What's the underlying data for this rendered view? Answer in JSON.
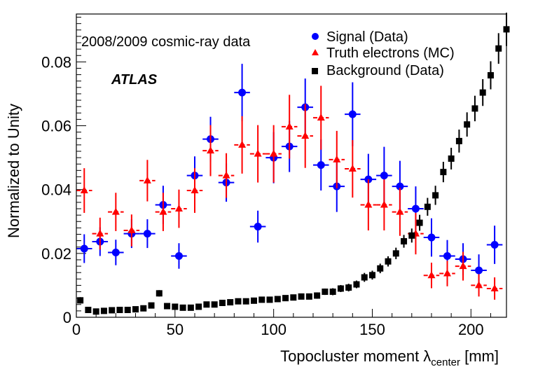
{
  "chart_data": {
    "type": "scatter",
    "xlabel_main": "Topocluster moment ",
    "xlabel_symbol": "λ",
    "xlabel_sub": "center",
    "xlabel_unit": " [mm]",
    "ylabel": "Normalized to Unity",
    "xlim": [
      0,
      218
    ],
    "ylim": [
      0,
      0.095
    ],
    "x_major_ticks": [
      0,
      50,
      100,
      150,
      200
    ],
    "x_tick_labels": [
      "0",
      "50",
      "100",
      "150",
      "200"
    ],
    "y_major_ticks": [
      0,
      0.02,
      0.04,
      0.06,
      0.08
    ],
    "y_tick_labels": [
      "0",
      "0.02",
      "0.04",
      "0.06",
      "0.08"
    ],
    "bin_width": 8,
    "annotations": {
      "dataset": "2008/2009 cosmic-ray data",
      "experiment": "ATLAS"
    },
    "series": [
      {
        "name": "Signal (Data)",
        "marker": "circle",
        "color": "#0000ff",
        "x": [
          4,
          12,
          20,
          28,
          36,
          44,
          52,
          60,
          68,
          76,
          84,
          92,
          100,
          108,
          116,
          124,
          132,
          140,
          148,
          156,
          164,
          172,
          180,
          188,
          196,
          204,
          212
        ],
        "y": [
          0.0215,
          0.0237,
          0.0203,
          0.0262,
          0.0262,
          0.0352,
          0.0192,
          0.0444,
          0.0558,
          0.0422,
          0.0704,
          0.0284,
          0.05,
          0.0535,
          0.0658,
          0.0477,
          0.041,
          0.0636,
          0.0432,
          0.0444,
          0.041,
          0.034,
          0.025,
          0.0192,
          0.0182,
          0.0147,
          0.0227
        ],
        "err": [
          0.0045,
          0.0045,
          0.004,
          0.0045,
          0.0045,
          0.006,
          0.004,
          0.006,
          0.007,
          0.006,
          0.009,
          0.005,
          0.008,
          0.008,
          0.009,
          0.008,
          0.008,
          0.01,
          0.008,
          0.009,
          0.008,
          0.007,
          0.006,
          0.005,
          0.005,
          0.005,
          0.006
        ]
      },
      {
        "name": "Truth electrons (MC)",
        "marker": "triangle",
        "color": "#ff0000",
        "x": [
          4,
          12,
          20,
          28,
          36,
          44,
          52,
          60,
          68,
          76,
          84,
          92,
          100,
          108,
          116,
          124,
          132,
          140,
          148,
          156,
          164,
          172,
          180,
          188,
          196,
          204,
          212
        ],
        "y": [
          0.0397,
          0.0262,
          0.033,
          0.0272,
          0.0428,
          0.033,
          0.034,
          0.0397,
          0.0522,
          0.0444,
          0.054,
          0.0512,
          0.0512,
          0.0597,
          0.0568,
          0.0625,
          0.0494,
          0.0465,
          0.0352,
          0.0352,
          0.033,
          0.0262,
          0.0131,
          0.0137,
          0.016,
          0.01,
          0.009
        ],
        "err": [
          0.007,
          0.005,
          0.006,
          0.005,
          0.0065,
          0.006,
          0.006,
          0.007,
          0.008,
          0.007,
          0.009,
          0.009,
          0.009,
          0.01,
          0.01,
          0.01,
          0.009,
          0.009,
          0.008,
          0.008,
          0.0075,
          0.0065,
          0.004,
          0.004,
          0.0045,
          0.0035,
          0.0035
        ]
      },
      {
        "name": "Background (Data)",
        "marker": "square",
        "color": "#000000",
        "x": [
          2,
          6,
          10,
          14,
          18,
          22,
          26,
          30,
          34,
          38,
          42,
          46,
          50,
          54,
          58,
          62,
          66,
          70,
          74,
          78,
          82,
          86,
          90,
          94,
          98,
          102,
          106,
          110,
          114,
          118,
          122,
          126,
          130,
          134,
          138,
          142,
          146,
          150,
          154,
          158,
          162,
          166,
          170,
          174,
          178,
          182,
          186,
          190,
          194,
          198,
          202,
          206,
          210,
          214,
          218
        ],
        "y": [
          0.0053,
          0.0023,
          0.0018,
          0.002,
          0.0022,
          0.0023,
          0.0023,
          0.0025,
          0.0028,
          0.0037,
          0.0075,
          0.0035,
          0.0033,
          0.003,
          0.003,
          0.0033,
          0.004,
          0.004,
          0.0045,
          0.0047,
          0.005,
          0.005,
          0.0052,
          0.0055,
          0.0055,
          0.0057,
          0.006,
          0.0062,
          0.0065,
          0.0065,
          0.0068,
          0.008,
          0.008,
          0.009,
          0.0093,
          0.0103,
          0.0125,
          0.0132,
          0.0153,
          0.0175,
          0.02,
          0.0238,
          0.0256,
          0.0296,
          0.0346,
          0.0382,
          0.0455,
          0.0497,
          0.0552,
          0.0604,
          0.0654,
          0.0704,
          0.0758,
          0.0842,
          0.0902
        ],
        "err": [
          0.001,
          0.0006,
          0.0005,
          0.0005,
          0.0005,
          0.0005,
          0.0005,
          0.0005,
          0.0006,
          0.0007,
          0.001,
          0.0006,
          0.0006,
          0.0006,
          0.0006,
          0.0006,
          0.0007,
          0.0007,
          0.0007,
          0.0007,
          0.0008,
          0.0008,
          0.0008,
          0.0008,
          0.0008,
          0.0008,
          0.0009,
          0.0009,
          0.0009,
          0.0009,
          0.001,
          0.001,
          0.0011,
          0.0011,
          0.0012,
          0.0012,
          0.0014,
          0.0014,
          0.0015,
          0.0016,
          0.0018,
          0.002,
          0.0022,
          0.0025,
          0.0028,
          0.003,
          0.0032,
          0.0034,
          0.0036,
          0.0038,
          0.004,
          0.0042,
          0.0044,
          0.0048,
          0.0052
        ]
      }
    ]
  }
}
